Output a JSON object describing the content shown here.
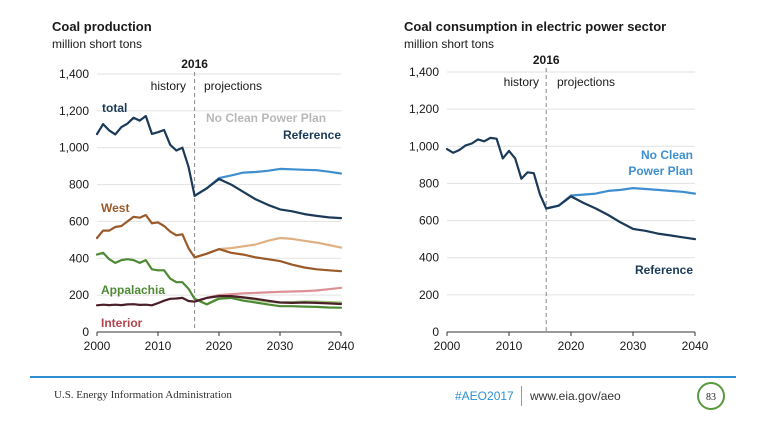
{
  "chart_data": [
    {
      "type": "line",
      "title": "Coal production",
      "subtitle": "million short tons",
      "xlim": [
        2000,
        2040
      ],
      "ylim": [
        0,
        1400
      ],
      "x_ticks": [
        "2000",
        "2010",
        "2020",
        "2030",
        "2040"
      ],
      "y_ticks": [
        "0",
        "200",
        "400",
        "600",
        "800",
        "1,000",
        "1,200",
        "1,400"
      ],
      "divider_year": "2016",
      "history_label": "history",
      "projections_label": "projections",
      "series": [
        {
          "name": "total",
          "scenario": "history",
          "color": "#1b3a57",
          "x": [
            2000,
            2001,
            2002,
            2003,
            2004,
            2005,
            2006,
            2007,
            2008,
            2009,
            2010,
            2011,
            2012,
            2013,
            2014,
            2015,
            2016
          ],
          "y": [
            1074,
            1128,
            1094,
            1072,
            1112,
            1131,
            1163,
            1147,
            1172,
            1075,
            1084,
            1096,
            1016,
            985,
            1000,
            897,
            739
          ]
        },
        {
          "name": "No Clean Power Plan",
          "scenario": "projection",
          "color": "#3f8fd0",
          "x": [
            2016,
            2018,
            2020,
            2022,
            2024,
            2026,
            2028,
            2030,
            2032,
            2034,
            2036,
            2038,
            2040
          ],
          "y": [
            739,
            780,
            835,
            850,
            865,
            868,
            875,
            885,
            883,
            880,
            878,
            870,
            860
          ]
        },
        {
          "name": "Reference",
          "scenario": "projection",
          "color": "#1b3a57",
          "x": [
            2016,
            2018,
            2020,
            2022,
            2024,
            2026,
            2028,
            2030,
            2032,
            2034,
            2036,
            2038,
            2040
          ],
          "y": [
            739,
            780,
            830,
            800,
            760,
            720,
            690,
            665,
            655,
            640,
            630,
            622,
            618
          ]
        },
        {
          "name": "West",
          "scenario": "history",
          "color": "#9a5a2a",
          "x": [
            2000,
            2001,
            2002,
            2003,
            2004,
            2005,
            2006,
            2007,
            2008,
            2009,
            2010,
            2011,
            2012,
            2013,
            2014,
            2015,
            2016
          ],
          "y": [
            510,
            550,
            550,
            570,
            575,
            600,
            625,
            620,
            635,
            590,
            595,
            575,
            545,
            525,
            530,
            455,
            405
          ]
        },
        {
          "name": "West NCPP",
          "scenario": "projection",
          "color": "#e0b083",
          "x": [
            2016,
            2018,
            2020,
            2022,
            2024,
            2026,
            2028,
            2030,
            2032,
            2034,
            2036,
            2038,
            2040
          ],
          "y": [
            405,
            425,
            450,
            455,
            465,
            475,
            495,
            510,
            505,
            495,
            485,
            472,
            458
          ]
        },
        {
          "name": "West Ref",
          "scenario": "projection",
          "color": "#9a5a2a",
          "x": [
            2016,
            2018,
            2020,
            2022,
            2024,
            2026,
            2028,
            2030,
            2032,
            2034,
            2036,
            2038,
            2040
          ],
          "y": [
            405,
            425,
            450,
            430,
            420,
            405,
            395,
            385,
            365,
            350,
            340,
            335,
            330
          ]
        },
        {
          "name": "Appalachia",
          "scenario": "history",
          "color": "#4e8a35",
          "x": [
            2000,
            2001,
            2002,
            2003,
            2004,
            2005,
            2006,
            2007,
            2008,
            2009,
            2010,
            2011,
            2012,
            2013,
            2014,
            2015,
            2016
          ],
          "y": [
            420,
            430,
            395,
            375,
            390,
            395,
            390,
            375,
            390,
            340,
            335,
            335,
            290,
            270,
            270,
            235,
            180
          ]
        },
        {
          "name": "Appalachia NCPP",
          "scenario": "projection",
          "color": "#9cc77a",
          "x": [
            2016,
            2018,
            2020,
            2022,
            2024,
            2026,
            2028,
            2030,
            2032,
            2034,
            2036,
            2038,
            2040
          ],
          "y": [
            180,
            150,
            185,
            195,
            185,
            175,
            165,
            160,
            162,
            165,
            165,
            162,
            160
          ]
        },
        {
          "name": "Appalachia Ref",
          "scenario": "projection",
          "color": "#4e8a35",
          "x": [
            2016,
            2018,
            2020,
            2022,
            2024,
            2026,
            2028,
            2030,
            2032,
            2034,
            2036,
            2038,
            2040
          ],
          "y": [
            180,
            150,
            180,
            185,
            170,
            160,
            150,
            140,
            140,
            138,
            136,
            133,
            132
          ]
        },
        {
          "name": "Interior",
          "scenario": "history",
          "color": "#4a1f2a",
          "x": [
            2000,
            2001,
            2002,
            2003,
            2004,
            2005,
            2006,
            2007,
            2008,
            2009,
            2010,
            2011,
            2012,
            2013,
            2014,
            2015,
            2016
          ],
          "y": [
            145,
            148,
            146,
            148,
            146,
            150,
            151,
            147,
            148,
            145,
            157,
            170,
            180,
            182,
            185,
            168,
            165
          ]
        },
        {
          "name": "Interior NCPP",
          "scenario": "projection",
          "color": "#dd8f95",
          "x": [
            2016,
            2018,
            2020,
            2022,
            2024,
            2026,
            2028,
            2030,
            2032,
            2034,
            2036,
            2038,
            2040
          ],
          "y": [
            165,
            185,
            200,
            205,
            210,
            212,
            215,
            218,
            220,
            222,
            225,
            232,
            240
          ]
        },
        {
          "name": "Interior Ref",
          "scenario": "projection",
          "color": "#4a1f2a",
          "x": [
            2016,
            2018,
            2020,
            2022,
            2024,
            2026,
            2028,
            2030,
            2032,
            2034,
            2036,
            2038,
            2040
          ],
          "y": [
            165,
            185,
            195,
            195,
            188,
            180,
            170,
            160,
            158,
            160,
            158,
            155,
            152
          ]
        }
      ],
      "labels": {
        "total": "total",
        "ncpp": "No Clean Power Plan",
        "reference": "Reference",
        "west": "West",
        "appalachia": "Appalachia",
        "interior": "Interior"
      }
    },
    {
      "type": "line",
      "title": "Coal consumption in electric power sector",
      "subtitle": "million short tons",
      "xlim": [
        2000,
        2040
      ],
      "ylim": [
        0,
        1400
      ],
      "x_ticks": [
        "2000",
        "2010",
        "2020",
        "2030",
        "2040"
      ],
      "y_ticks": [
        "0",
        "200",
        "400",
        "600",
        "800",
        "1,000",
        "1,200",
        "1,400"
      ],
      "divider_year": "2016",
      "history_label": "history",
      "projections_label": "projections",
      "series": [
        {
          "name": "history",
          "scenario": "history",
          "color": "#1b3a57",
          "x": [
            2000,
            2001,
            2002,
            2003,
            2004,
            2005,
            2006,
            2007,
            2008,
            2009,
            2010,
            2011,
            2012,
            2013,
            2014,
            2015,
            2016
          ],
          "y": [
            985,
            965,
            980,
            1005,
            1015,
            1037,
            1027,
            1045,
            1041,
            935,
            975,
            935,
            825,
            860,
            855,
            740,
            665
          ]
        },
        {
          "name": "No Clean Power Plan",
          "scenario": "projection",
          "color": "#3f8fd0",
          "x": [
            2016,
            2018,
            2020,
            2022,
            2024,
            2026,
            2028,
            2030,
            2032,
            2034,
            2036,
            2038,
            2040
          ],
          "y": [
            665,
            680,
            735,
            740,
            745,
            760,
            765,
            775,
            770,
            765,
            760,
            755,
            745
          ]
        },
        {
          "name": "Reference",
          "scenario": "projection",
          "color": "#1b3a57",
          "x": [
            2016,
            2018,
            2020,
            2022,
            2024,
            2026,
            2028,
            2030,
            2032,
            2034,
            2036,
            2038,
            2040
          ],
          "y": [
            665,
            680,
            730,
            695,
            665,
            630,
            590,
            555,
            545,
            530,
            520,
            510,
            500
          ]
        }
      ],
      "labels": {
        "ncpp_line1": "No Clean",
        "ncpp_line2": "Power Plan",
        "reference": "Reference"
      }
    }
  ],
  "footer": {
    "agency": "U.S. Energy Information Administration",
    "hashtag": "#AEO2017",
    "url": "www.eia.gov/aeo",
    "page": "83"
  }
}
